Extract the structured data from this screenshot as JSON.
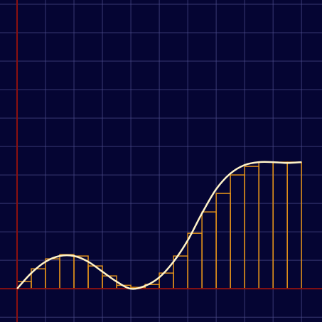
{
  "colors": {
    "background": "#050533",
    "grid": "#4a4a88",
    "axis": "#8b1010",
    "bar_stroke": "#e0901a",
    "curve": "#fff3c8"
  },
  "chart_data": {
    "type": "bar",
    "description_hint": "",
    "xlim": [
      -0.6,
      10.72
    ],
    "ylim": [
      -1.17,
      10.15
    ],
    "grid": true,
    "grid_step": 1,
    "axis_origin": [
      0,
      0
    ],
    "bar_width": 0.5,
    "x": [
      0,
      0.5,
      1,
      1.5,
      2,
      2.5,
      3,
      3.5,
      4,
      4.5,
      5,
      5.5,
      6,
      6.5,
      7,
      7.5,
      8,
      8.5,
      9,
      9.5
    ],
    "values": [
      0.25,
      0.7,
      1.05,
      1.2,
      1.15,
      0.8,
      0.45,
      0.12,
      0.05,
      0.15,
      0.55,
      1.15,
      1.95,
      2.7,
      3.35,
      4.0,
      4.3,
      4.45,
      4.45,
      4.45
    ],
    "curve": {
      "x": [
        0,
        0.5,
        1,
        1.5,
        2,
        2.5,
        3,
        3.5,
        4,
        4.5,
        5,
        5.5,
        6,
        6.5,
        7,
        7.5,
        8,
        8.5,
        9,
        9.5,
        10
      ],
      "values": [
        0,
        0.55,
        0.95,
        1.15,
        1.15,
        0.95,
        0.6,
        0.25,
        0.0,
        0.1,
        0.4,
        0.95,
        1.7,
        2.65,
        3.5,
        4.05,
        4.35,
        4.45,
        4.45,
        4.42,
        4.45
      ]
    }
  }
}
